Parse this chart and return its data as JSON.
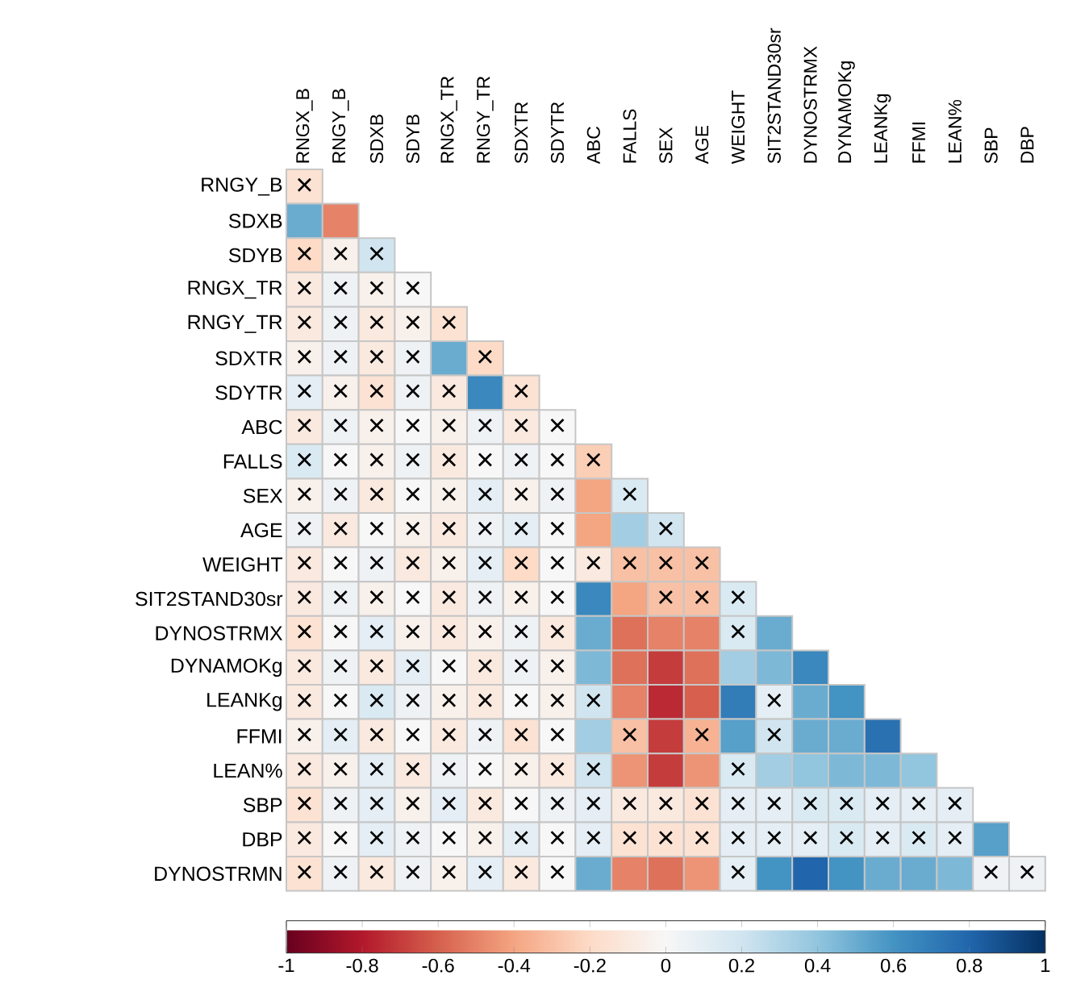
{
  "chart_data": {
    "type": "heatmap",
    "categories": [
      "RNGX_B",
      "RNGY_B",
      "SDXB",
      "SDYB",
      "RNGX_TR",
      "RNGY_TR",
      "SDXTR",
      "SDYTR",
      "ABC",
      "FALLS",
      "SEX",
      "AGE",
      "WEIGHT",
      "SIT2STAND30sr",
      "DYNOSTRMX",
      "DYNAMOKg",
      "LEANKg",
      "FFMI",
      "LEAN%",
      "SBP",
      "DBP"
    ],
    "y_categories": [
      "RNGY_B",
      "SDXB",
      "SDYB",
      "RNGX_TR",
      "RNGY_TR",
      "SDXTR",
      "SDYTR",
      "ABC",
      "FALLS",
      "SEX",
      "AGE",
      "WEIGHT",
      "SIT2STAND30sr",
      "DYNOSTRMX",
      "DYNAMOKg",
      "LEANKg",
      "FFMI",
      "LEAN%",
      "SBP",
      "DBP",
      "DYNOSTRMN"
    ],
    "cells": [
      [
        -0.15,
        null,
        null,
        null,
        null,
        null,
        null,
        null,
        null,
        null,
        null,
        null,
        null,
        null,
        null,
        null,
        null,
        null,
        null,
        null,
        null
      ],
      [
        0.5,
        -0.5,
        null,
        null,
        null,
        null,
        null,
        null,
        null,
        null,
        null,
        null,
        null,
        null,
        null,
        null,
        null,
        null,
        null,
        null,
        null
      ],
      [
        -0.2,
        -0.05,
        0.2,
        null,
        null,
        null,
        null,
        null,
        null,
        null,
        null,
        null,
        null,
        null,
        null,
        null,
        null,
        null,
        null,
        null,
        null
      ],
      [
        -0.1,
        0.05,
        -0.05,
        0,
        null,
        null,
        null,
        null,
        null,
        null,
        null,
        null,
        null,
        null,
        null,
        null,
        null,
        null,
        null,
        null,
        null
      ],
      [
        -0.1,
        0.05,
        -0.1,
        -0.05,
        -0.15,
        null,
        null,
        null,
        null,
        null,
        null,
        null,
        null,
        null,
        null,
        null,
        null,
        null,
        null,
        null,
        null
      ],
      [
        -0.05,
        0.05,
        -0.1,
        0.05,
        0.5,
        -0.2,
        null,
        null,
        null,
        null,
        null,
        null,
        null,
        null,
        null,
        null,
        null,
        null,
        null,
        null,
        null
      ],
      [
        0.1,
        -0.05,
        -0.15,
        0.05,
        -0.1,
        0.65,
        -0.15,
        null,
        null,
        null,
        null,
        null,
        null,
        null,
        null,
        null,
        null,
        null,
        null,
        null,
        null
      ],
      [
        -0.1,
        0.05,
        -0.05,
        0,
        -0.05,
        0.05,
        -0.1,
        0,
        null,
        null,
        null,
        null,
        null,
        null,
        null,
        null,
        null,
        null,
        null,
        null,
        null
      ],
      [
        0.15,
        0,
        -0.05,
        0.05,
        -0.1,
        0,
        0.05,
        0,
        -0.25,
        null,
        null,
        null,
        null,
        null,
        null,
        null,
        null,
        null,
        null,
        null,
        null
      ],
      [
        -0.05,
        0.05,
        -0.1,
        0,
        -0.05,
        0.1,
        -0.05,
        0.05,
        -0.4,
        0.15,
        null,
        null,
        null,
        null,
        null,
        null,
        null,
        null,
        null,
        null,
        null
      ],
      [
        0.05,
        -0.1,
        0,
        -0.05,
        -0.1,
        0.05,
        0.1,
        0,
        -0.4,
        0.35,
        0.2,
        null,
        null,
        null,
        null,
        null,
        null,
        null,
        null,
        null,
        null
      ],
      [
        -0.1,
        0,
        0.05,
        -0.1,
        -0.05,
        0.1,
        -0.2,
        0,
        -0.1,
        -0.3,
        -0.3,
        -0.3,
        null,
        null,
        null,
        null,
        null,
        null,
        null,
        null,
        null
      ],
      [
        -0.1,
        0.05,
        -0.05,
        0,
        -0.1,
        0.05,
        -0.05,
        0,
        0.65,
        -0.4,
        -0.3,
        -0.3,
        0.15,
        null,
        null,
        null,
        null,
        null,
        null,
        null,
        null
      ],
      [
        -0.15,
        0,
        0.1,
        -0.05,
        -0.1,
        -0.05,
        0.05,
        -0.1,
        0.5,
        -0.55,
        -0.5,
        -0.5,
        0.15,
        0.5,
        null,
        null,
        null,
        null,
        null,
        null,
        null
      ],
      [
        -0.1,
        0.05,
        -0.1,
        0.1,
        0,
        -0.1,
        0.05,
        -0.05,
        0.45,
        -0.55,
        -0.7,
        -0.55,
        0.35,
        0.45,
        0.65,
        null,
        null,
        null,
        null,
        null,
        null
      ],
      [
        -0.1,
        0,
        0.15,
        0.05,
        -0.05,
        -0.1,
        0,
        -0.05,
        0.2,
        -0.5,
        -0.75,
        -0.6,
        0.7,
        0.1,
        0.5,
        0.6,
        null,
        null,
        null,
        null,
        null
      ],
      [
        -0.05,
        0.1,
        -0.1,
        0,
        -0.1,
        0.05,
        -0.15,
        0,
        0.35,
        -0.3,
        -0.7,
        -0.35,
        0.55,
        0.2,
        0.5,
        0.5,
        0.75,
        null,
        null,
        null,
        null
      ],
      [
        -0.1,
        -0.05,
        0.1,
        -0.1,
        0.05,
        0,
        -0.05,
        -0.1,
        0.2,
        -0.45,
        -0.7,
        -0.45,
        0.15,
        0.35,
        0.4,
        0.45,
        0.45,
        0.4,
        null,
        null,
        null
      ],
      [
        -0.15,
        0.05,
        0.1,
        -0.05,
        0.1,
        -0.1,
        0,
        0.05,
        0.1,
        -0.1,
        -0.1,
        -0.15,
        0.1,
        0.1,
        0.15,
        0.15,
        0.1,
        0.1,
        0.1,
        null,
        null
      ],
      [
        -0.1,
        0,
        0.1,
        0.05,
        0,
        -0.05,
        0.1,
        0,
        0.1,
        -0.15,
        -0.15,
        -0.15,
        0.1,
        0.1,
        0.1,
        0.15,
        0.1,
        0.15,
        0.1,
        0.55,
        null
      ],
      [
        -0.15,
        0.05,
        -0.1,
        0.05,
        -0.05,
        0.1,
        -0.1,
        0,
        0.5,
        -0.5,
        -0.55,
        -0.45,
        0.1,
        0.6,
        0.8,
        0.6,
        0.5,
        0.5,
        0.45,
        0.05,
        0.05
      ]
    ],
    "cell_labels": [
      [
        "×",
        null,
        null,
        null,
        null,
        null,
        null,
        null,
        null,
        null,
        null,
        null,
        null,
        null,
        null,
        null,
        null,
        null,
        null,
        null,
        null
      ],
      [
        null,
        null,
        null,
        null,
        null,
        null,
        null,
        null,
        null,
        null,
        null,
        null,
        null,
        null,
        null,
        null,
        null,
        null,
        null,
        null,
        null
      ],
      [
        "×",
        "×",
        "×",
        null,
        null,
        null,
        null,
        null,
        null,
        null,
        null,
        null,
        null,
        null,
        null,
        null,
        null,
        null,
        null,
        null,
        null
      ],
      [
        "×",
        "×",
        "×",
        "×",
        null,
        null,
        null,
        null,
        null,
        null,
        null,
        null,
        null,
        null,
        null,
        null,
        null,
        null,
        null,
        null,
        null
      ],
      [
        "×",
        "×",
        "×",
        "×",
        "×",
        null,
        null,
        null,
        null,
        null,
        null,
        null,
        null,
        null,
        null,
        null,
        null,
        null,
        null,
        null,
        null
      ],
      [
        "×",
        "×",
        "×",
        "×",
        null,
        "×",
        null,
        null,
        null,
        null,
        null,
        null,
        null,
        null,
        null,
        null,
        null,
        null,
        null,
        null,
        null
      ],
      [
        "×",
        "×",
        "×",
        "×",
        "×",
        null,
        "×",
        null,
        null,
        null,
        null,
        null,
        null,
        null,
        null,
        null,
        null,
        null,
        null,
        null,
        null
      ],
      [
        "×",
        "×",
        "×",
        "×",
        "×",
        "×",
        "×",
        "×",
        null,
        null,
        null,
        null,
        null,
        null,
        null,
        null,
        null,
        null,
        null,
        null,
        null
      ],
      [
        "×",
        "×",
        "×",
        "×",
        "×",
        "×",
        "×",
        "×",
        "×",
        null,
        null,
        null,
        null,
        null,
        null,
        null,
        null,
        null,
        null,
        null,
        null
      ],
      [
        "×",
        "×",
        "×",
        "×",
        "×",
        "×",
        "×",
        "×",
        null,
        "×",
        null,
        null,
        null,
        null,
        null,
        null,
        null,
        null,
        null,
        null,
        null
      ],
      [
        "×",
        "×",
        "×",
        "×",
        "×",
        "×",
        "×",
        "×",
        null,
        null,
        "×",
        null,
        null,
        null,
        null,
        null,
        null,
        null,
        null,
        null,
        null
      ],
      [
        "×",
        "×",
        "×",
        "×",
        "×",
        "×",
        "×",
        "×",
        "×",
        "×",
        "×",
        "×",
        null,
        null,
        null,
        null,
        null,
        null,
        null,
        null,
        null
      ],
      [
        "×",
        "×",
        "×",
        "×",
        "×",
        "×",
        "×",
        "×",
        null,
        null,
        "×",
        "×",
        "×",
        null,
        null,
        null,
        null,
        null,
        null,
        null,
        null
      ],
      [
        "×",
        "×",
        "×",
        "×",
        "×",
        "×",
        "×",
        "×",
        null,
        null,
        null,
        null,
        "×",
        null,
        null,
        null,
        null,
        null,
        null,
        null,
        null
      ],
      [
        "×",
        "×",
        "×",
        "×",
        "×",
        "×",
        "×",
        "×",
        null,
        null,
        null,
        null,
        null,
        null,
        null,
        null,
        null,
        null,
        null,
        null,
        null
      ],
      [
        "×",
        "×",
        "×",
        "×",
        "×",
        "×",
        "×",
        "×",
        "×",
        null,
        null,
        null,
        null,
        "×",
        null,
        null,
        null,
        null,
        null,
        null,
        null
      ],
      [
        "×",
        "×",
        "×",
        "×",
        "×",
        "×",
        "×",
        "×",
        null,
        "×",
        null,
        "×",
        null,
        "×",
        null,
        null,
        null,
        null,
        null,
        null,
        null
      ],
      [
        "×",
        "×",
        "×",
        "×",
        "×",
        "×",
        "×",
        "×",
        "×",
        null,
        null,
        null,
        "×",
        null,
        null,
        null,
        null,
        null,
        null,
        null,
        null
      ],
      [
        "×",
        "×",
        "×",
        "×",
        "×",
        "×",
        "×",
        "×",
        "×",
        "×",
        "×",
        "×",
        "×",
        "×",
        "×",
        "×",
        "×",
        "×",
        "×",
        null,
        null
      ],
      [
        "×",
        "×",
        "×",
        "×",
        "×",
        "×",
        "×",
        "×",
        "×",
        "×",
        "×",
        "×",
        "×",
        "×",
        "×",
        "×",
        "×",
        "×",
        "×",
        null,
        null
      ],
      [
        "×",
        "×",
        "×",
        "×",
        "×",
        "×",
        "×",
        "×",
        null,
        null,
        null,
        null,
        "×",
        null,
        null,
        null,
        null,
        null,
        null,
        "×",
        "×"
      ]
    ],
    "clim": [
      -1,
      1
    ],
    "cticks": [
      -1,
      -0.8,
      -0.6,
      -0.4,
      -0.2,
      0,
      0.2,
      0.4,
      0.6,
      0.8,
      1
    ]
  }
}
